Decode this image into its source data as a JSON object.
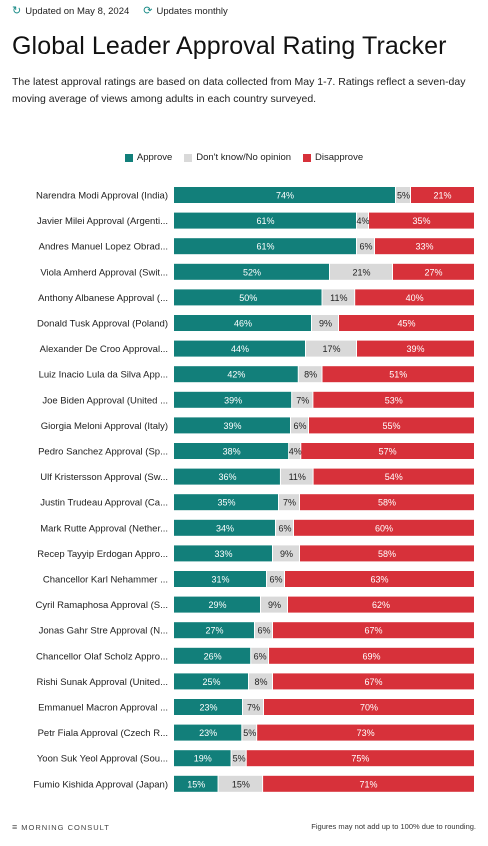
{
  "header": {
    "updated": "Updated on May 8, 2024",
    "frequency": "Updates monthly"
  },
  "title": "Global Leader Approval Rating Tracker",
  "subtitle": "The latest approval ratings are based on data collected from May 1-7. Ratings reflect a seven-day moving average of views among adults in each country surveyed.",
  "colors": {
    "approve": "#127f7a",
    "neutral": "#d9d9d9",
    "disapprove": "#d7313a"
  },
  "icons": {
    "updated": "history-icon",
    "frequency": "refresh-icon"
  },
  "footer": {
    "logo": "MORNING CONSULT",
    "note": "Figures may not add up to 100% due to rounding."
  },
  "chart_data": {
    "type": "bar",
    "orientation": "horizontal",
    "stacked": true,
    "legend_position": "top-center",
    "categories": [
      "Narendra Modi Approval (India)",
      "Javier Milei Approval (Argenti...",
      "Andres Manuel Lopez Obrad...",
      "Viola Amherd Approval (Swit...",
      "Anthony Albanese Approval (...",
      "Donald Tusk Approval (Poland)",
      "Alexander De Croo Approval...",
      "Luiz Inacio Lula da Silva App...",
      "Joe Biden Approval (United ...",
      "Giorgia Meloni Approval (Italy)",
      "Pedro Sanchez Approval (Sp...",
      "Ulf Kristersson Approval (Sw...",
      "Justin Trudeau Approval (Ca...",
      "Mark Rutte Approval (Nether...",
      "Recep Tayyip Erdogan Appro...",
      "Chancellor Karl Nehammer ...",
      "Cyril Ramaphosa Approval (S...",
      "Jonas Gahr Stre Approval (N...",
      "Chancellor Olaf Scholz Appro...",
      "Rishi Sunak Approval (United...",
      "Emmanuel Macron Approval ...",
      "Petr Fiala Approval (Czech R...",
      "Yoon Suk Yeol Approval (Sou...",
      "Fumio Kishida Approval (Japan)"
    ],
    "series": [
      {
        "name": "Approve",
        "values": [
          74,
          61,
          61,
          52,
          50,
          46,
          44,
          42,
          39,
          39,
          38,
          36,
          35,
          34,
          33,
          31,
          29,
          27,
          26,
          25,
          23,
          23,
          19,
          15
        ]
      },
      {
        "name": "Don't know/No opinion",
        "values": [
          5,
          4,
          6,
          21,
          11,
          9,
          17,
          8,
          7,
          6,
          4,
          11,
          7,
          6,
          9,
          6,
          9,
          6,
          6,
          8,
          7,
          5,
          5,
          15
        ]
      },
      {
        "name": "Disapprove",
        "values": [
          21,
          35,
          33,
          27,
          40,
          45,
          39,
          51,
          53,
          55,
          57,
          54,
          58,
          60,
          58,
          63,
          62,
          67,
          69,
          67,
          70,
          73,
          75,
          71
        ]
      }
    ],
    "value_labels": [
      [
        "74%",
        "5%",
        "21%"
      ],
      [
        "61%",
        "4%",
        "35%"
      ],
      [
        "61%",
        "6%",
        "33%"
      ],
      [
        "52%",
        "21%",
        "27%"
      ],
      [
        "50%",
        "11%",
        "40%"
      ],
      [
        "46%",
        "9%",
        "45%"
      ],
      [
        "44%",
        "17%",
        "39%"
      ],
      [
        "42%",
        "8%",
        "51%"
      ],
      [
        "39%",
        "7%",
        "53%"
      ],
      [
        "39%",
        "6%",
        "55%"
      ],
      [
        "38%",
        "4%",
        "57%"
      ],
      [
        "36%",
        "11%",
        "54%"
      ],
      [
        "35%",
        "7%",
        "58%"
      ],
      [
        "34%",
        "6%",
        "60%"
      ],
      [
        "33%",
        "9%",
        "58%"
      ],
      [
        "31%",
        "6%",
        "63%"
      ],
      [
        "29%",
        "9%",
        "62%"
      ],
      [
        "27%",
        "6%",
        "67%"
      ],
      [
        "26%",
        "6%",
        "69%"
      ],
      [
        "25%",
        "8%",
        "67%"
      ],
      [
        "23%",
        "7%",
        "70%"
      ],
      [
        "23%",
        "5%",
        "73%"
      ],
      [
        "19%",
        "5%",
        "75%"
      ],
      [
        "15%",
        "15%",
        "71%"
      ]
    ]
  }
}
